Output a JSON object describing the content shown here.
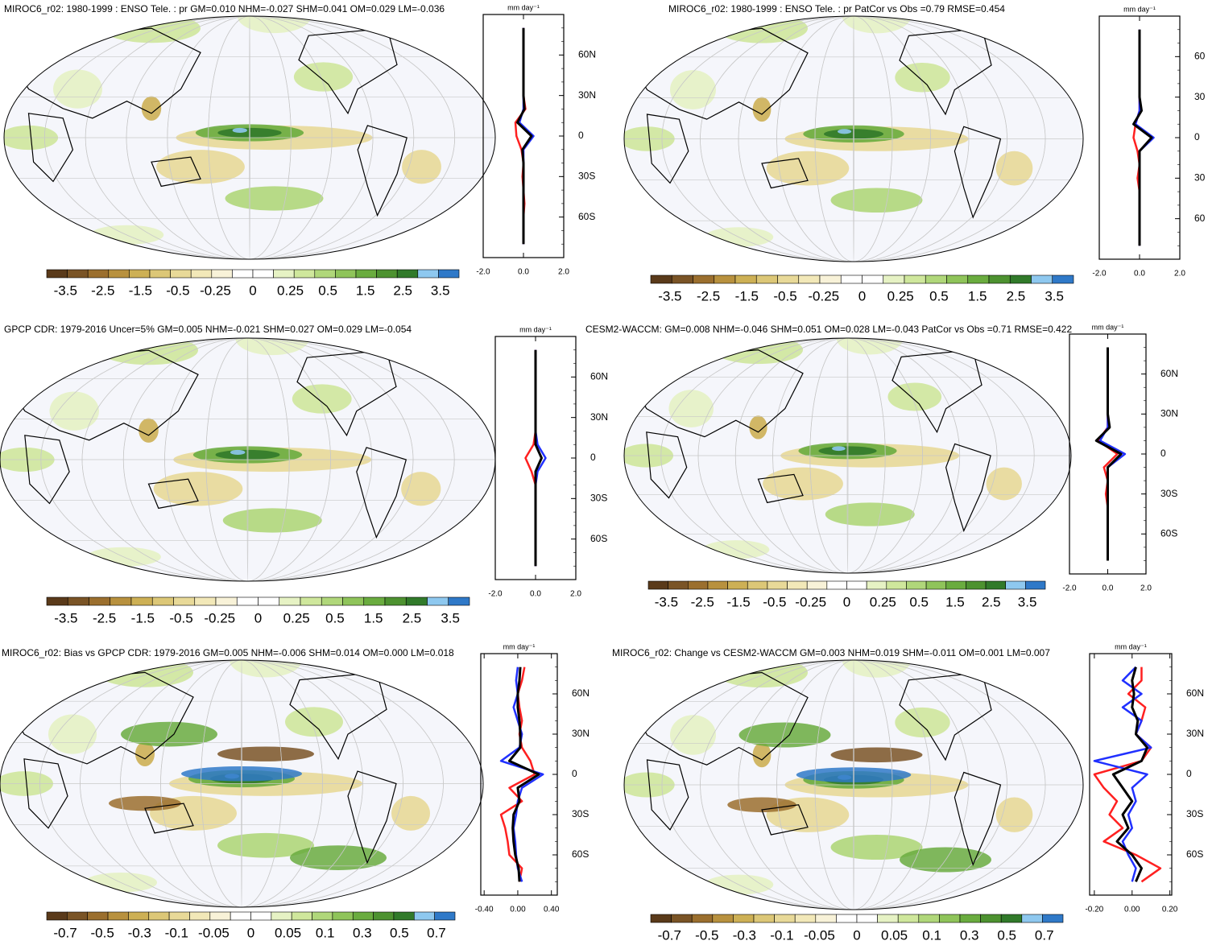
{
  "colorbar_colors": [
    "#5a3a1a",
    "#7a5426",
    "#9b6f2e",
    "#b8913e",
    "#cdb055",
    "#dcc777",
    "#e8d998",
    "#f2e8b8",
    "#f8f2d8",
    "#ffffff",
    "#ffffff",
    "#e6f2c4",
    "#cfe79c",
    "#b0d77a",
    "#8fc45a",
    "#6aac3f",
    "#4d9230",
    "#317a2a",
    "#8ec8ef",
    "#2f79c8"
  ],
  "chart_data": [
    {
      "type": "line",
      "title": "MIROC6_r02: 1980-1999 : ENSO Tele. : pr GM=0.010 NHM=-0.027 SHM=0.041 OM=0.029 LM=-0.036",
      "units": "mm day⁻¹",
      "colorbar_labels": [
        -3.5,
        -2.5,
        -1.5,
        -0.5,
        -0.25,
        0,
        0.25,
        0.5,
        1.5,
        2.5,
        3.5
      ],
      "latitudes": [
        -80,
        -70,
        -60,
        -50,
        -40,
        -30,
        -20,
        -10,
        0,
        10,
        20,
        30,
        40,
        50,
        60,
        70,
        80
      ],
      "xlim": [
        -2,
        2
      ],
      "xticks": [
        {
          "value": -2,
          "label": "-2.0"
        },
        {
          "value": 0,
          "label": "0.0"
        },
        {
          "value": 2,
          "label": "2.0"
        }
      ],
      "ylim": [
        -90,
        90
      ],
      "yticks": [
        {
          "value": 60,
          "label": "60N"
        },
        {
          "value": 30,
          "label": "30N"
        },
        0,
        {
          "value": -30,
          "label": "30S"
        },
        {
          "value": -60,
          "label": "60S"
        }
      ],
      "series": [
        {
          "color": "#ff2020",
          "values": [
            0,
            0,
            0,
            0.05,
            0,
            -0.05,
            0,
            -0.1,
            -0.35,
            -0.4,
            0.1,
            0,
            0,
            0,
            0,
            0,
            0
          ]
        },
        {
          "color": "#2030ff",
          "values": [
            0,
            0,
            0,
            0,
            0,
            0,
            0,
            0,
            0.5,
            -0.2,
            0,
            0,
            0,
            0,
            0,
            0,
            0
          ]
        },
        {
          "color": "#000000",
          "values": [
            0,
            0,
            0,
            0,
            0,
            0,
            0,
            -0.05,
            0.4,
            -0.3,
            0.05,
            0,
            0,
            0,
            0,
            0,
            0
          ]
        }
      ]
    },
    {
      "type": "line",
      "title": "MIROC6_r02: 1980-1999 : ENSO Tele. : pr PatCor vs Obs =0.79 RMSE=0.454",
      "units": "mm day⁻¹",
      "colorbar_labels": [
        -3.5,
        -2.5,
        -1.5,
        -0.5,
        -0.25,
        0,
        0.25,
        0.5,
        1.5,
        2.5,
        3.5
      ],
      "latitudes": [
        -80,
        -70,
        -60,
        -50,
        -40,
        -30,
        -20,
        -10,
        0,
        10,
        20,
        30,
        40,
        50,
        60,
        70,
        80
      ],
      "xlim": [
        -2,
        2
      ],
      "xticks": [
        {
          "value": -2,
          "label": "-2.0"
        },
        {
          "value": 0,
          "label": "0.0"
        },
        {
          "value": 2,
          "label": "2.0"
        }
      ],
      "ylim": [
        -90,
        90
      ],
      "yticks": [
        {
          "value": 60,
          "label": "60"
        },
        {
          "value": 30,
          "label": "30"
        },
        0,
        {
          "value": -30,
          "label": "30"
        },
        {
          "value": -60,
          "label": "60"
        }
      ],
      "series": [
        {
          "color": "#ff2020",
          "values": [
            0,
            0,
            0,
            0,
            0,
            -0.1,
            0,
            -0.1,
            -0.3,
            -0.2,
            0,
            0,
            0,
            0,
            0,
            0,
            0
          ]
        },
        {
          "color": "#2030ff",
          "values": [
            0,
            0,
            0,
            0,
            0,
            0,
            0,
            0,
            0.7,
            -0.2,
            0,
            0,
            0,
            0,
            0,
            0,
            0
          ]
        },
        {
          "color": "#000000",
          "values": [
            0,
            0,
            0,
            0,
            0,
            0,
            0,
            0,
            0.6,
            -0.3,
            0.1,
            0,
            0,
            0,
            0,
            0,
            0
          ]
        }
      ]
    },
    {
      "type": "line",
      "title": "GPCP CDR: 1979-2016 Uncer=5% GM=0.005 NHM=-0.021 SHM=0.027 OM=0.029 LM=-0.054",
      "units": "mm day⁻¹",
      "colorbar_labels": [
        -3.5,
        -2.5,
        -1.5,
        -0.5,
        -0.25,
        0,
        0.25,
        0.5,
        1.5,
        2.5,
        3.5
      ],
      "latitudes": [
        -80,
        -70,
        -60,
        -50,
        -40,
        -30,
        -20,
        -10,
        0,
        10,
        20,
        30,
        40,
        50,
        60,
        70,
        80
      ],
      "xlim": [
        -2,
        2
      ],
      "xticks": [
        {
          "value": -2,
          "label": "-2.0"
        },
        {
          "value": 0,
          "label": "0.0"
        },
        {
          "value": 2,
          "label": "2.0"
        }
      ],
      "ylim": [
        -90,
        90
      ],
      "yticks": [
        {
          "value": 60,
          "label": "60N"
        },
        {
          "value": 30,
          "label": "30N"
        },
        0,
        {
          "value": -30,
          "label": "30S"
        },
        {
          "value": -60,
          "label": "60S"
        }
      ],
      "series": [
        {
          "color": "#ff2020",
          "values": [
            0,
            0,
            0,
            0,
            0,
            0,
            0,
            -0.2,
            -0.5,
            -0.1,
            0,
            0,
            0,
            0,
            0,
            0,
            0
          ]
        },
        {
          "color": "#2030ff",
          "values": [
            0,
            0,
            0,
            0,
            0,
            0,
            0,
            0.1,
            0.5,
            0.1,
            0,
            0,
            0,
            0,
            0,
            0,
            0
          ]
        },
        {
          "color": "#000000",
          "values": [
            0,
            0,
            0,
            0,
            0,
            0,
            0,
            0,
            0.3,
            0,
            0,
            0,
            0,
            0,
            0,
            0,
            0
          ]
        }
      ]
    },
    {
      "type": "line",
      "title": "CESM2-WACCM: GM=0.008 NHM=-0.046 SHM=0.051 OM=0.028 LM=-0.043 PatCor vs Obs =0.71 RMSE=0.422",
      "units": "mm day⁻¹",
      "colorbar_labels": [
        -3.5,
        -2.5,
        -1.5,
        -0.5,
        -0.25,
        0,
        0.25,
        0.5,
        1.5,
        2.5,
        3.5
      ],
      "latitudes": [
        -80,
        -70,
        -60,
        -50,
        -40,
        -30,
        -20,
        -10,
        0,
        10,
        20,
        30,
        40,
        50,
        60,
        70,
        80
      ],
      "xlim": [
        -2,
        2
      ],
      "xticks": [
        {
          "value": -2,
          "label": "-2.0"
        },
        {
          "value": 0,
          "label": "0.0"
        },
        {
          "value": 2,
          "label": "2.0"
        }
      ],
      "ylim": [
        -90,
        90
      ],
      "yticks": [
        {
          "value": 60,
          "label": "60N"
        },
        {
          "value": 30,
          "label": "30N"
        },
        0,
        {
          "value": -30,
          "label": "30S"
        },
        {
          "value": -60,
          "label": "60S"
        }
      ],
      "series": [
        {
          "color": "#ff2020",
          "values": [
            0,
            0,
            0,
            0,
            0,
            -0.1,
            0,
            -0.2,
            0.5,
            -0.5,
            0,
            0,
            0,
            0,
            0,
            0,
            0
          ]
        },
        {
          "color": "#2030ff",
          "values": [
            0,
            0,
            0,
            0,
            0,
            0,
            0,
            0,
            0.9,
            -0.4,
            0,
            0,
            0,
            0,
            0,
            0,
            0
          ]
        },
        {
          "color": "#000000",
          "values": [
            0,
            0,
            0,
            0,
            0,
            0,
            0,
            0,
            0.7,
            -0.6,
            0.1,
            0,
            0,
            0,
            0,
            0,
            0
          ]
        }
      ]
    },
    {
      "type": "line",
      "title": "MIROC6_r02: Bias vs GPCP CDR: 1979-2016 GM=0.005 NHM=-0.006 SHM=0.014 OM=0.000 LM=0.018",
      "units": "mm day⁻¹",
      "colorbar_labels": [
        -0.7,
        -0.5,
        -0.3,
        -0.1,
        -0.05,
        0,
        0.05,
        0.1,
        0.3,
        0.5,
        0.7
      ],
      "latitudes": [
        -80,
        -70,
        -60,
        -50,
        -40,
        -30,
        -20,
        -10,
        0,
        10,
        20,
        30,
        40,
        50,
        60,
        70,
        80
      ],
      "xlim": [
        -0.44,
        0.47
      ],
      "xticks": [
        {
          "value": -0.4,
          "label": "-0.40"
        },
        {
          "value": 0,
          "label": "0.00"
        },
        {
          "value": 0.4,
          "label": "0.40"
        }
      ],
      "ylim": [
        -90,
        90
      ],
      "yticks": [
        {
          "value": 60,
          "label": "60N"
        },
        {
          "value": 30,
          "label": "30N"
        },
        0,
        {
          "value": -30,
          "label": "30S"
        },
        {
          "value": -60,
          "label": "60S"
        }
      ],
      "series": [
        {
          "color": "#ff2020",
          "values": [
            0.02,
            0.05,
            -0.1,
            -0.12,
            -0.15,
            -0.2,
            0.05,
            -0.1,
            0.2,
            0.15,
            0.05,
            0.02,
            0.05,
            0.02,
            0,
            0.05,
            0.08
          ]
        },
        {
          "color": "#2030ff",
          "values": [
            0.05,
            0,
            -0.02,
            -0.03,
            -0.05,
            -0.02,
            0,
            0.05,
            0.3,
            -0.2,
            0.02,
            0.05,
            0,
            -0.05,
            0,
            -0.02,
            0
          ]
        },
        {
          "color": "#000000",
          "values": [
            0.02,
            0.01,
            -0.03,
            -0.05,
            -0.06,
            -0.05,
            0.02,
            0,
            0.25,
            -0.1,
            0.03,
            0.03,
            0.02,
            0,
            0,
            0.02,
            0.03
          ]
        }
      ]
    },
    {
      "type": "line",
      "title": "MIROC6_r02: Change vs CESM2-WACCM GM=0.003 NHM=0.019 SHM=-0.011 OM=0.001 LM=0.007",
      "units": "mm day⁻¹",
      "colorbar_labels": [
        -0.7,
        -0.5,
        -0.3,
        -0.1,
        -0.05,
        0,
        0.05,
        0.1,
        0.3,
        0.5,
        0.7
      ],
      "latitudes": [
        -80,
        -70,
        -60,
        -50,
        -40,
        -30,
        -20,
        -10,
        0,
        10,
        20,
        30,
        40,
        50,
        60,
        70,
        80
      ],
      "xlim": [
        -0.225,
        0.21
      ],
      "xticks": [
        {
          "value": -0.2,
          "label": "-0.20"
        },
        {
          "value": 0,
          "label": "0.00"
        },
        {
          "value": 0.2,
          "label": "0.20"
        }
      ],
      "ylim": [
        -90,
        90
      ],
      "yticks": [
        {
          "value": 60,
          "label": "60N"
        },
        {
          "value": 30,
          "label": "30N"
        },
        0,
        {
          "value": -30,
          "label": "30S"
        },
        {
          "value": -60,
          "label": "60S"
        }
      ],
      "series": [
        {
          "color": "#ff2020",
          "values": [
            0.05,
            0.15,
            0.02,
            -0.15,
            -0.05,
            -0.12,
            -0.08,
            -0.15,
            -0.2,
            0.05,
            0.1,
            0.02,
            0.05,
            0.07,
            -0.02,
            0.05,
            0.05
          ]
        },
        {
          "color": "#2030ff",
          "values": [
            0,
            0.02,
            -0.02,
            -0.05,
            0,
            -0.02,
            0.02,
            0,
            0.08,
            -0.2,
            0.1,
            0.02,
            0.05,
            -0.05,
            0.05,
            -0.05,
            0.02
          ]
        },
        {
          "color": "#000000",
          "values": [
            0.02,
            0.05,
            0,
            -0.08,
            -0.02,
            -0.05,
            0,
            -0.05,
            -0.1,
            0.05,
            0.08,
            0.02,
            0.03,
            0,
            0.01,
            0,
            0.02
          ]
        }
      ]
    }
  ]
}
